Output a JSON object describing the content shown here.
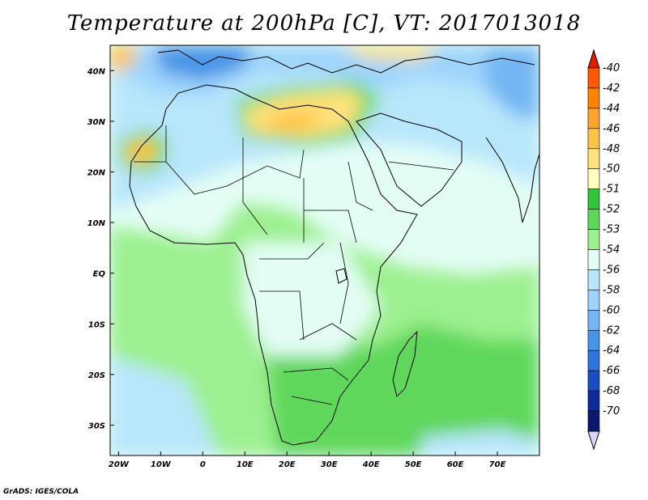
{
  "title": "Temperature at 200hPa [C], VT: 2017013018",
  "credit": "GrADS: IGES/COLA",
  "chart_data": {
    "type": "heatmap",
    "title": "Temperature at 200hPa [C], VT: 2017013018",
    "xlim": [
      -22,
      80
    ],
    "ylim": [
      -36,
      45
    ],
    "x_ticks": [
      {
        "value": -20,
        "label": "20W"
      },
      {
        "value": -10,
        "label": "10W"
      },
      {
        "value": 0,
        "label": "0"
      },
      {
        "value": 10,
        "label": "10E"
      },
      {
        "value": 20,
        "label": "20E"
      },
      {
        "value": 30,
        "label": "30E"
      },
      {
        "value": 40,
        "label": "40E"
      },
      {
        "value": 50,
        "label": "50E"
      },
      {
        "value": 60,
        "label": "60E"
      },
      {
        "value": 70,
        "label": "70E"
      }
    ],
    "y_ticks": [
      {
        "value": 40,
        "label": "40N"
      },
      {
        "value": 30,
        "label": "30N"
      },
      {
        "value": 20,
        "label": "20N"
      },
      {
        "value": 10,
        "label": "10N"
      },
      {
        "value": 0,
        "label": "EQ"
      },
      {
        "value": -10,
        "label": "10S"
      },
      {
        "value": -20,
        "label": "20S"
      },
      {
        "value": -30,
        "label": "30S"
      }
    ],
    "colorbar": {
      "labels": [
        "-40",
        "-42",
        "-44",
        "-46",
        "-48",
        "-50",
        "-51",
        "-52",
        "-53",
        "-54",
        "-56",
        "-58",
        "-60",
        "-62",
        "-64",
        "-66",
        "-68",
        "-70"
      ],
      "colors": [
        "#e11f00",
        "#ff5a00",
        "#ff8200",
        "#ffa32c",
        "#ffc346",
        "#ffe27c",
        "#fffebc",
        "#33c43d",
        "#5fd75a",
        "#9df090",
        "#e3fdf5",
        "#b8e6fb",
        "#9ed4fb",
        "#73b6f3",
        "#4a94e8",
        "#2d74dd",
        "#1a4dc5",
        "#0f2a9a",
        "#0c1770",
        "#dcd6fa"
      ]
    },
    "regions": [
      {
        "name": "",
        "level": -54,
        "lon": [
          -22,
          80
        ],
        "lat": [
          -36,
          45
        ]
      },
      {
        "name": "",
        "level": -56,
        "lon": [
          60,
          80
        ],
        "lat": [
          20,
          45
        ]
      },
      {
        "name": "",
        "level": -58,
        "lon": [
          -5,
          25
        ],
        "lat": [
          38,
          45
        ]
      },
      {
        "name": "",
        "level": -60,
        "lon": [
          -10,
          10
        ],
        "lat": [
          40,
          45
        ]
      },
      {
        "name": "",
        "level": -50,
        "lon": [
          10,
          35
        ],
        "lat": [
          25,
          34
        ]
      },
      {
        "name": "",
        "level": -48,
        "lon": [
          -17,
          -12
        ],
        "lat": [
          20,
          26
        ]
      },
      {
        "name": "",
        "level": -53,
        "lon": [
          -22,
          80
        ],
        "lat": [
          -36,
          10
        ]
      },
      {
        "name": "",
        "level": -58,
        "lon": [
          -22,
          0
        ],
        "lat": [
          -36,
          -20
        ]
      }
    ]
  }
}
